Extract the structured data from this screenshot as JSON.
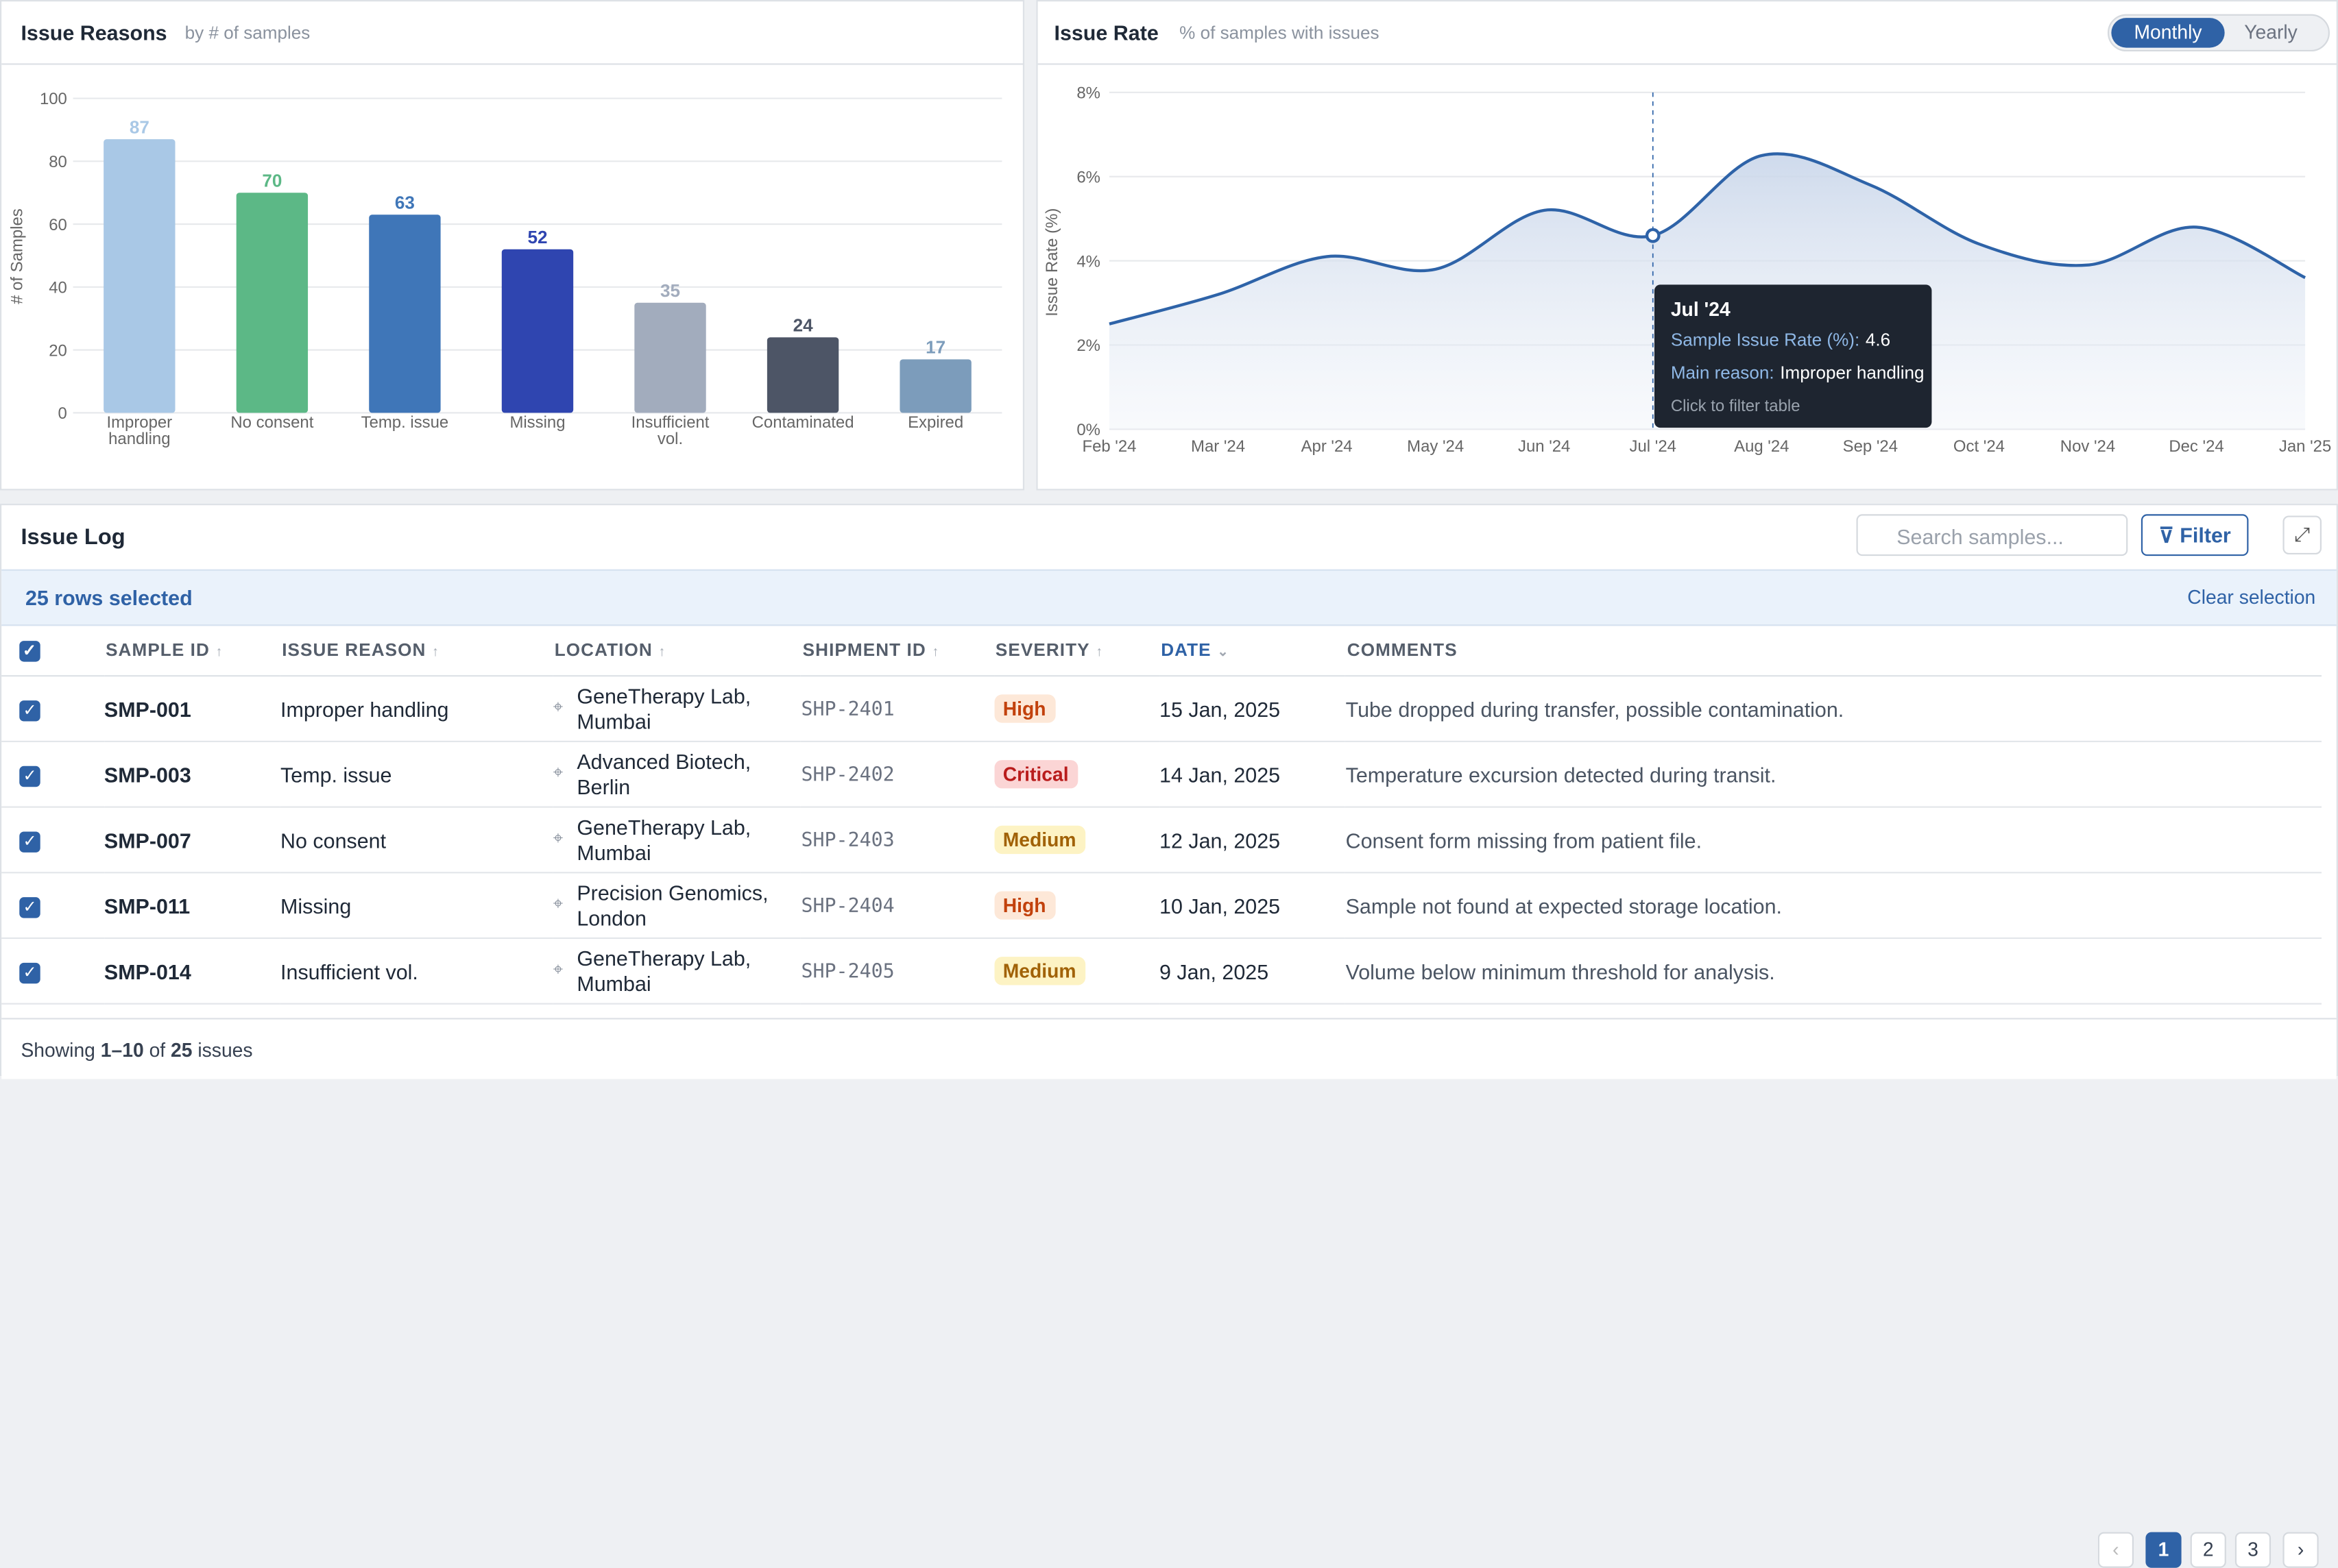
{
  "chart_data": [
    {
      "type": "bar",
      "title": "Issue Reasons",
      "subtitle": "by # of samples",
      "y_label": "# of Samples",
      "categories": [
        "Improper handling",
        "No consent",
        "Temp. issue",
        "Missing",
        "Insufficient vol.",
        "Contaminated",
        "Expired"
      ],
      "values": [
        87,
        70,
        63,
        52,
        35,
        24,
        17
      ],
      "colors": [
        "#a9c8e6",
        "#5cb886",
        "#3f76b8",
        "#2f45b0",
        "#a2acbd",
        "#4d5566",
        "#7c9cbb"
      ],
      "ylim": [
        0,
        100
      ],
      "yticks": [
        0,
        20,
        40,
        60,
        80,
        100
      ],
      "grid": true
    },
    {
      "type": "line",
      "title": "Issue Rate",
      "subtitle": "% of samples with issues",
      "y_label": "Issue Rate (%)",
      "toggle": [
        "Monthly",
        "Yearly"
      ],
      "categories": [
        "Feb '24",
        "Mar '24",
        "Apr '24",
        "May '24",
        "Jun '24",
        "Jul '24",
        "Aug '24",
        "Sep '24",
        "Oct '24",
        "Nov '24",
        "Dec '24",
        "Jan '25"
      ],
      "series": [
        {
          "name": "Sample Issue Rate (%):",
          "color": "#2e63a8",
          "values": [
            2.5,
            3.2,
            4.1,
            3.8,
            5.2,
            4.6,
            6.5,
            5.8,
            4.4,
            3.9,
            4.8,
            3.6
          ]
        }
      ],
      "ylim": [
        0,
        8
      ],
      "yticks": [
        {
          "value": 0,
          "label": "0%"
        },
        {
          "value": 2,
          "label": "2%"
        },
        {
          "value": 4,
          "label": "4%"
        },
        {
          "value": 6,
          "label": "6%"
        },
        {
          "value": 8,
          "label": "8%"
        }
      ],
      "grid": true,
      "tooltip": {
        "reason_label": "Main reason:",
        "reason": "Improper handling",
        "hint": "Click to filter table"
      }
    }
  ],
  "issue_log": {
    "title": "Issue Log",
    "search_placeholder": "Search samples...",
    "filter": "Filter",
    "selection": "25 rows selected",
    "clear": "Clear selection",
    "columns": [
      "SAMPLE ID",
      "ISSUE REASON",
      "LOCATION",
      "SHIPMENT ID",
      "SEVERITY",
      "DATE",
      "COMMENTS"
    ],
    "rows": [
      [
        "SMP-001",
        "Improper handling",
        "GeneTherapy Lab, Mumbai",
        "SHP-2401",
        "High",
        "15 Jan, 2025",
        "Tube dropped during transfer, possible contamination."
      ],
      [
        "SMP-003",
        "Temp. issue",
        "Advanced Biotech, Berlin",
        "SHP-2402",
        "Critical",
        "14 Jan, 2025",
        "Temperature excursion detected during transit."
      ],
      [
        "SMP-007",
        "No consent",
        "GeneTherapy Lab, Mumbai",
        "SHP-2403",
        "Medium",
        "12 Jan, 2025",
        "Consent form missing from patient file."
      ],
      [
        "SMP-011",
        "Missing",
        "Precision Genomics, London",
        "SHP-2404",
        "High",
        "10 Jan, 2025",
        "Sample not found at expected storage location."
      ],
      [
        "SMP-014",
        "Insufficient vol.",
        "GeneTherapy Lab, Mumbai",
        "SHP-2405",
        "Medium",
        "9 Jan, 2025",
        "Volume below minimum threshold for analysis."
      ]
    ],
    "footer": {
      "prefix": "Showing",
      "range": "1–10",
      "of": "of",
      "total": "25",
      "suffix": "issues"
    },
    "pages": [
      "1",
      "2",
      "3"
    ]
  }
}
